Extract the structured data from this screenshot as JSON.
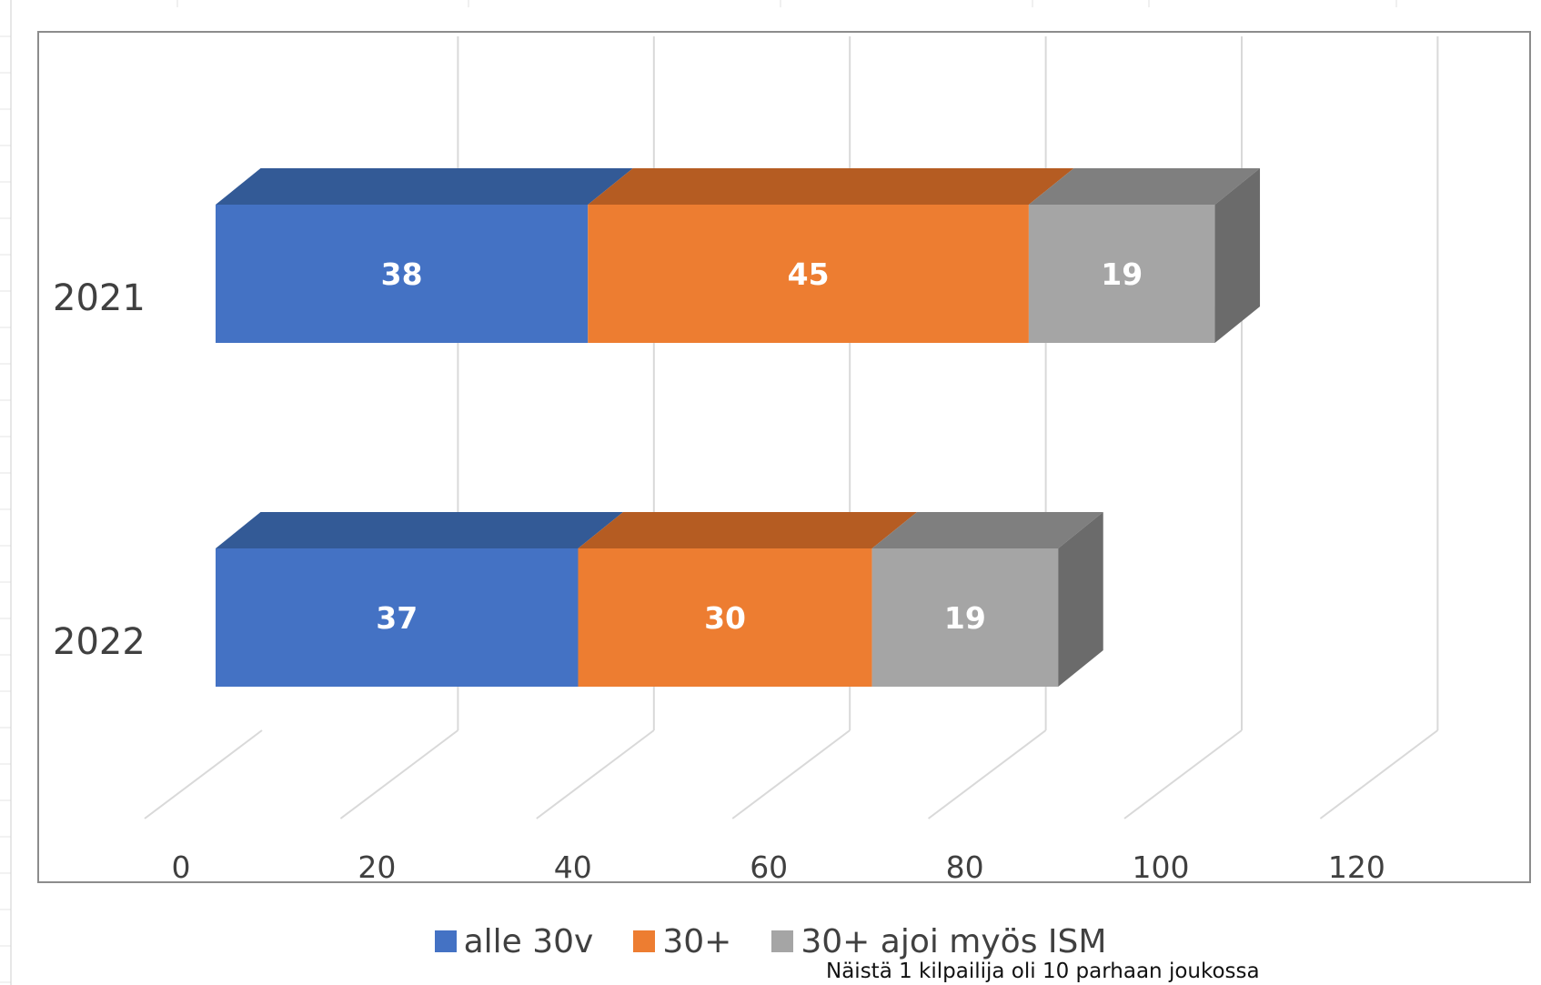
{
  "colors": {
    "series1_front": "#4472C4",
    "series1_top": "#335A96",
    "series2_front": "#ED7D31",
    "series2_top": "#B55C22",
    "series3_front": "#A5A5A5",
    "series3_top": "#7F7F7F",
    "series3_side": "#6B6B6B",
    "gridline": "#D9D9D9",
    "plot_border": "#8C8C8C",
    "label_text": "#404040"
  },
  "chart_data": {
    "type": "bar",
    "orientation": "horizontal",
    "stacked": true,
    "style": "3d",
    "categories": [
      "2021",
      "2022"
    ],
    "series": [
      {
        "name": "alle 30v",
        "values": [
          38,
          37
        ],
        "color": "#4472C4"
      },
      {
        "name": "30+",
        "values": [
          45,
          30
        ],
        "color": "#ED7D31"
      },
      {
        "name": "30+ ajoi myös ISM",
        "values": [
          19,
          19
        ],
        "color": "#A5A5A5"
      }
    ],
    "xticks": [
      "0",
      "20",
      "40",
      "60",
      "80",
      "100",
      "120"
    ],
    "xlim": [
      0,
      120
    ],
    "grid": true,
    "legend_position": "bottom",
    "annotation": "Näistä 1 kilpailija oli 10 parhaan joukossa"
  }
}
